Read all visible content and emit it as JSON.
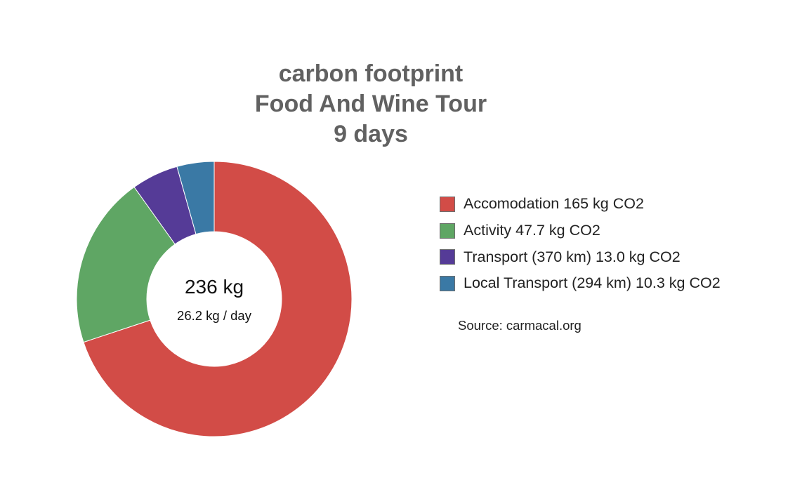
{
  "chart_data": {
    "type": "pie",
    "variant": "donut",
    "title_lines": [
      "carbon footprint",
      "Food And Wine Tour",
      "9 days"
    ],
    "center": {
      "total": "236 kg",
      "per_day": "26.2 kg / day"
    },
    "unit": "kg CO2",
    "slices": [
      {
        "label": "Accomodation 165 kg CO2",
        "value": 165,
        "color": "#d24c47"
      },
      {
        "label": "Activity 47.7 kg CO2",
        "value": 47.7,
        "color": "#5fa664"
      },
      {
        "label": "Transport (370 km) 13.0 kg CO2",
        "value": 13.0,
        "color": "#553b97"
      },
      {
        "label": "Local Transport (294 km) 10.3 kg CO2",
        "value": 10.3,
        "color": "#3a79a5"
      }
    ],
    "legend_position": "right",
    "source": "Source: carmacal.org"
  }
}
